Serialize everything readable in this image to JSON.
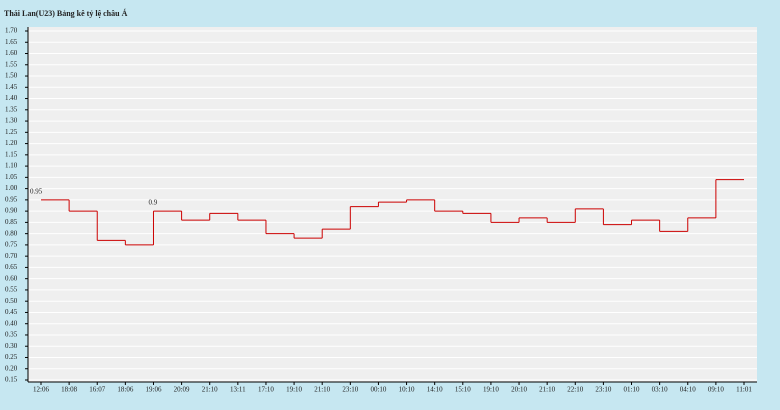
{
  "chart_data": {
    "type": "step",
    "title": "Thái Lan(U23) Bảng kê tỷ lệ châu Á",
    "categories": [
      "12:06",
      "18:08",
      "16:07",
      "18:06",
      "19:06",
      "20:09",
      "21:10",
      "13:11",
      "17:10",
      "19:10",
      "21:10",
      "23:10",
      "00:10",
      "10:10",
      "14:10",
      "15:10",
      "19:10",
      "20:10",
      "21:10",
      "22:10",
      "23:10",
      "01:10",
      "03:10",
      "04:10",
      "09:10",
      "11:01"
    ],
    "series": [
      {
        "color": "#cc0000",
        "values": [
          0.95,
          0.9,
          0.77,
          0.75,
          0.9,
          0.86,
          0.89,
          0.86,
          0.8,
          0.78,
          0.82,
          0.92,
          0.94,
          0.95,
          0.9,
          0.89,
          0.85,
          0.87,
          0.85,
          0.91,
          0.84,
          0.86,
          0.81,
          0.87,
          1.04,
          1.04
        ],
        "value_labels": [
          "0.95",
          null,
          null,
          null,
          "0.9",
          null,
          null,
          null,
          null,
          null,
          null,
          null,
          null,
          null,
          null,
          null,
          null,
          null,
          null,
          null,
          null,
          null,
          null,
          null,
          null,
          null
        ]
      }
    ],
    "ylim": [
      0.15,
      1.7
    ],
    "yticks": [
      0.15,
      {
        "value": 0.2,
        "label": "0.20"
      },
      0.25,
      {
        "value": 0.3,
        "label": "0.30"
      },
      0.35,
      {
        "value": 0.4,
        "label": "0.40"
      },
      0.45,
      {
        "value": 0.5,
        "label": "0.50"
      },
      0.55,
      {
        "value": 0.6,
        "label": "0.60"
      },
      0.65,
      {
        "value": 0.7,
        "label": "0.70"
      },
      0.75,
      {
        "value": 0.8,
        "label": "0.80"
      },
      0.85,
      {
        "value": 0.9,
        "label": "0.90"
      },
      0.95,
      {
        "value": 1.0,
        "label": "1.00"
      },
      1.05,
      {
        "value": 1.1,
        "label": "1.10"
      },
      1.15,
      {
        "value": 1.2,
        "label": "1.20"
      },
      1.25,
      {
        "value": 1.3,
        "label": "1.30"
      },
      1.35,
      {
        "value": 1.4,
        "label": "1.40"
      },
      1.45,
      {
        "value": 1.5,
        "label": "1.50"
      },
      1.55,
      {
        "value": 1.6,
        "label": "1.60"
      },
      1.65,
      {
        "value": 1.7,
        "label": "1.70"
      }
    ],
    "grid": true
  }
}
